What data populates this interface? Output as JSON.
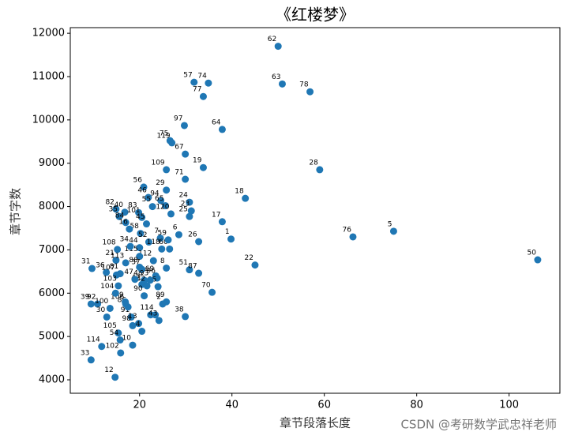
{
  "chart_data": {
    "type": "scatter",
    "title": "《红楼梦》",
    "x_label": "章节段落长度",
    "y_label": "章节字数",
    "watermark": "CSDN @考研数学武忠祥老师",
    "color": "#1f77b4",
    "xlim": [
      5,
      111
    ],
    "ylim": [
      3690,
      12130
    ],
    "xticks": [
      20,
      40,
      60,
      80,
      100
    ],
    "yticks": [
      4000,
      5000,
      6000,
      7000,
      8000,
      9000,
      10000,
      11000,
      12000
    ],
    "point_labels": [
      "62",
      "57",
      "74",
      "77",
      "63",
      "78",
      "97",
      "64",
      "75",
      "119",
      "67",
      "19",
      "28",
      "109",
      "71",
      "56",
      "29",
      "46",
      "18",
      "94",
      "24",
      "55",
      "82",
      "40",
      "35",
      "83",
      "101",
      "65",
      "120",
      "23",
      "25",
      "17",
      "45",
      "1",
      "5",
      "76",
      "50",
      "22",
      "26",
      "51",
      "87",
      "70",
      "38",
      "31",
      "36",
      "39",
      "92",
      "100",
      "30",
      "114",
      "33",
      "12",
      "102",
      "105",
      "54",
      "10",
      "91",
      "98",
      "13",
      "106",
      "86",
      "4",
      "11",
      "14",
      "43",
      "89",
      "2",
      "58",
      "84",
      "44",
      "7",
      "60",
      "52",
      "6",
      "118",
      "59",
      "108",
      "112",
      "115",
      "8",
      "21",
      "113",
      "88",
      "69",
      "107",
      "81",
      "96",
      "48",
      "103",
      "104",
      "42",
      "34",
      "16",
      "66",
      "32",
      "90",
      "9",
      "37",
      "47",
      "93"
    ],
    "x": [
      50,
      31.8,
      34.9,
      33.8,
      50.9,
      56.9,
      29.7,
      37.9,
      26.6,
      27,
      29.9,
      33.8,
      59,
      25.8,
      29.9,
      20.9,
      25.8,
      21.9,
      42.9,
      24.6,
      30.8,
      22.8,
      14.9,
      16.8,
      15.6,
      19.8,
      20.5,
      25.6,
      26.8,
      31.2,
      30.8,
      37.9,
      21.5,
      39.8,
      75,
      66.2,
      106.2,
      45,
      32.8,
      30.8,
      32.8,
      35.7,
      29.9,
      9.7,
      12.8,
      9.5,
      10.9,
      13.6,
      12.9,
      11.8,
      9.5,
      14.7,
      15.9,
      15.4,
      15.8,
      18.5,
      18.2,
      18.5,
      19.8,
      17,
      17.5,
      20.5,
      22.4,
      23.4,
      24.2,
      25.8,
      25,
      20.2,
      17,
      20,
      24.5,
      26.5,
      22,
      28.5,
      24.8,
      26.2,
      15.2,
      23,
      20,
      25.8,
      14.9,
      17,
      20,
      23.5,
      15,
      15.8,
      23.8,
      21,
      15.4,
      14.8,
      20.5,
      18,
      17.8,
      24,
      21.6,
      21,
      16.9,
      20.5,
      19,
      22.3
    ],
    "values": [
      11700,
      10870,
      10850,
      10540,
      10830,
      10650,
      9870,
      9780,
      9520,
      9470,
      9210,
      8900,
      8850,
      8850,
      8630,
      8450,
      8380,
      8210,
      8190,
      8140,
      8100,
      8000,
      7940,
      7870,
      7770,
      7860,
      7750,
      8020,
      7830,
      7900,
      7770,
      7650,
      7600,
      7250,
      7430,
      7300,
      6770,
      6650,
      7190,
      6540,
      6460,
      6020,
      5460,
      6570,
      6480,
      5750,
      5750,
      5650,
      5450,
      4770,
      4460,
      4060,
      4620,
      5080,
      4920,
      4800,
      5450,
      5250,
      5300,
      5750,
      5680,
      5120,
      5500,
      5500,
      5370,
      5800,
      5750,
      7380,
      7630,
      7050,
      7270,
      7020,
      7180,
      7350,
      7020,
      7230,
      7010,
      6750,
      6850,
      6580,
      6760,
      6700,
      6600,
      6400,
      6420,
      6450,
      6350,
      6300,
      6170,
      6000,
      6200,
      7080,
      7480,
      6150,
      6170,
      5940,
      5800,
      6550,
      6320,
      6300
    ]
  }
}
